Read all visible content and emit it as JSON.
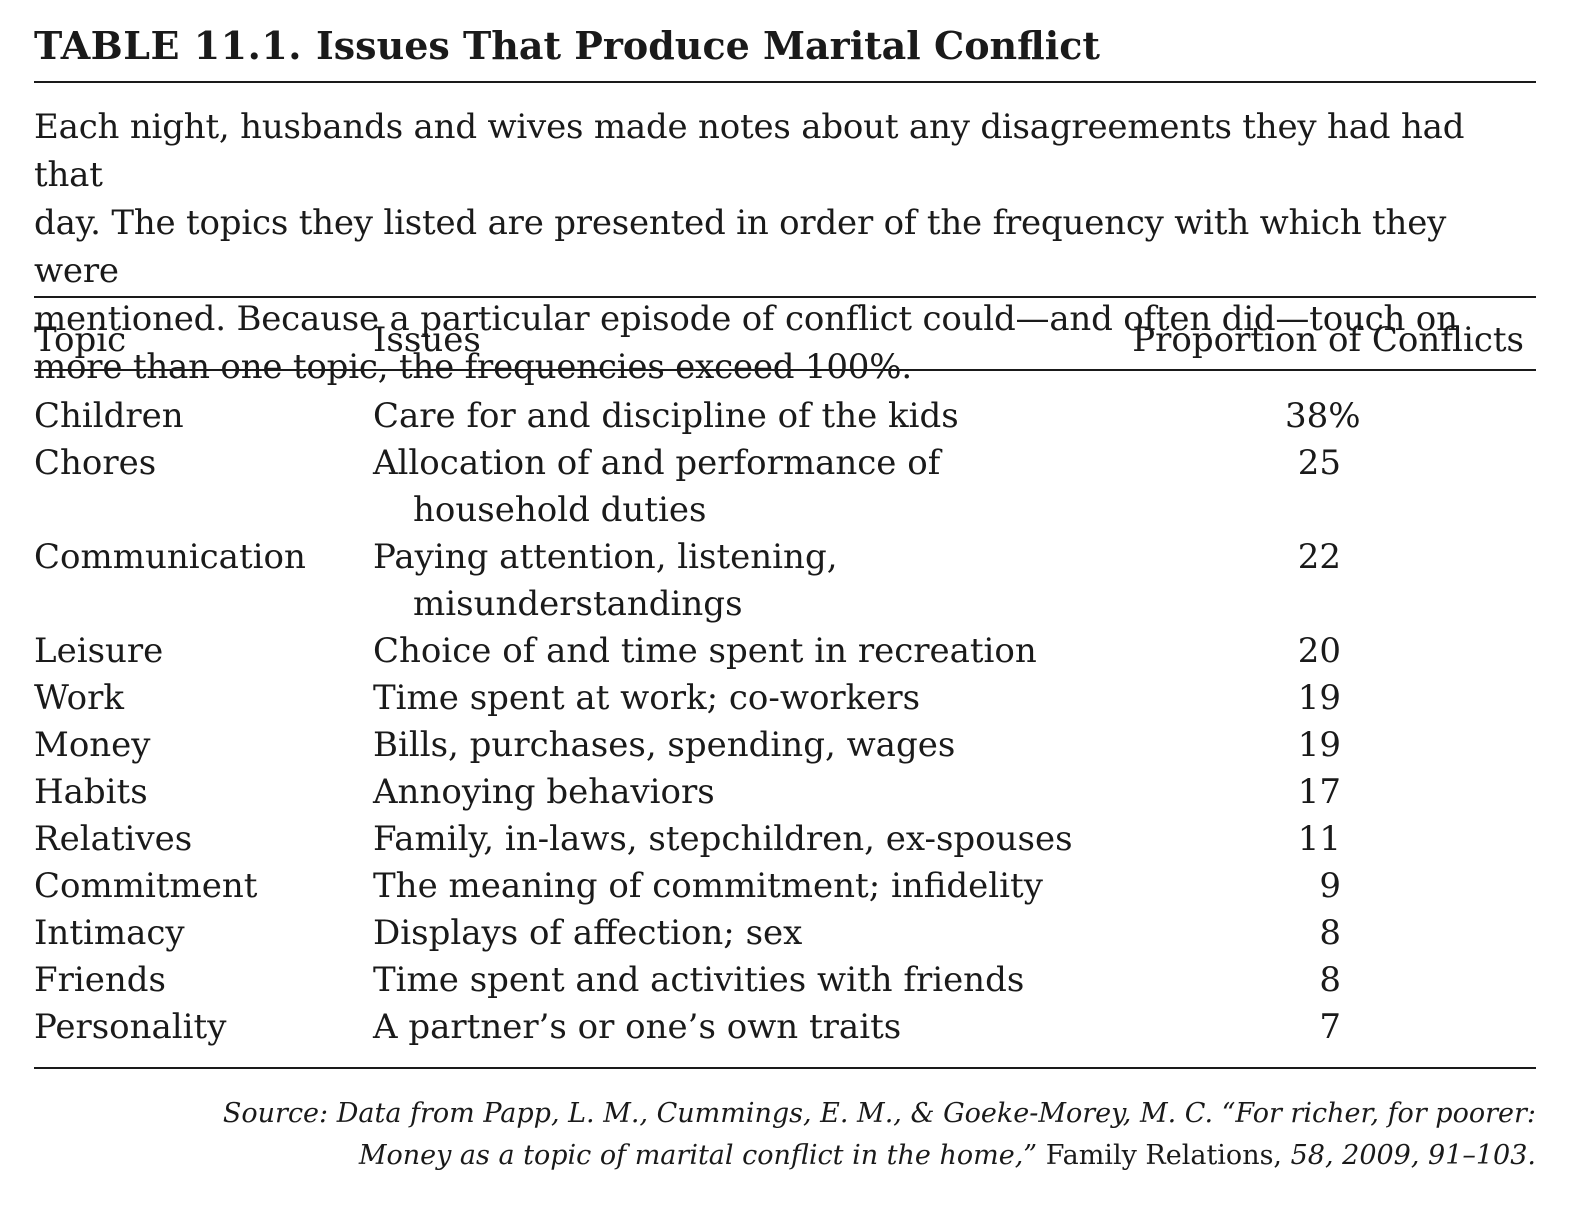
{
  "table": {
    "number_label": "TABLE 11.1.",
    "title": "Issues That Produce Marital Conflict",
    "caption": "Each night, husbands and wives made notes about any disagreements they had had that\nday. The topics they listed are presented in order of the frequency with which they were\nmentioned. Because a particular episode of conflict could—and often did—touch on\nmore than one topic, the frequencies exceed 100%.",
    "headers": {
      "topic": "Topic",
      "issues": "Issues",
      "proportion": "Proportion of Conflicts"
    },
    "rows": [
      {
        "topic": "Children",
        "issue": "Care for and discipline of the kids",
        "issue_cont": "",
        "value": "38%"
      },
      {
        "topic": "Chores",
        "issue": "Allocation of and performance of",
        "issue_cont": "household duties",
        "value": "25"
      },
      {
        "topic": "Communication",
        "issue": "Paying attention, listening,",
        "issue_cont": "misunderstandings",
        "value": "22"
      },
      {
        "topic": "Leisure",
        "issue": "Choice of and time spent in recreation",
        "issue_cont": "",
        "value": "20"
      },
      {
        "topic": "Work",
        "issue": "Time spent at work; co-workers",
        "issue_cont": "",
        "value": "19"
      },
      {
        "topic": "Money",
        "issue": "Bills, purchases, spending, wages",
        "issue_cont": "",
        "value": "19"
      },
      {
        "topic": "Habits",
        "issue": "Annoying behaviors",
        "issue_cont": "",
        "value": "17"
      },
      {
        "topic": "Relatives",
        "issue": "Family, in-laws, stepchildren, ex-spouses",
        "issue_cont": "",
        "value": "11"
      },
      {
        "topic": "Commitment",
        "issue": "The meaning of commitment; infidelity",
        "issue_cont": "",
        "value": "9"
      },
      {
        "topic": "Intimacy",
        "issue": "Displays of affection; sex",
        "issue_cont": "",
        "value": "8"
      },
      {
        "topic": "Friends",
        "issue": "Time spent and activities with friends",
        "issue_cont": "",
        "value": "8"
      },
      {
        "topic": "Personality",
        "issue": "A partner’s or one’s own traits",
        "issue_cont": "",
        "value": "7"
      }
    ],
    "source": {
      "line1": "Source: Data from Papp, L. M., Cummings, E. M., & Goeke-Morey, M. C. “For richer, for poorer:",
      "line2_italic": "Money as a topic of marital conflict in the home,”",
      "journal": "Family Relations,",
      "citation": "58, 2009, 91–103."
    }
  }
}
